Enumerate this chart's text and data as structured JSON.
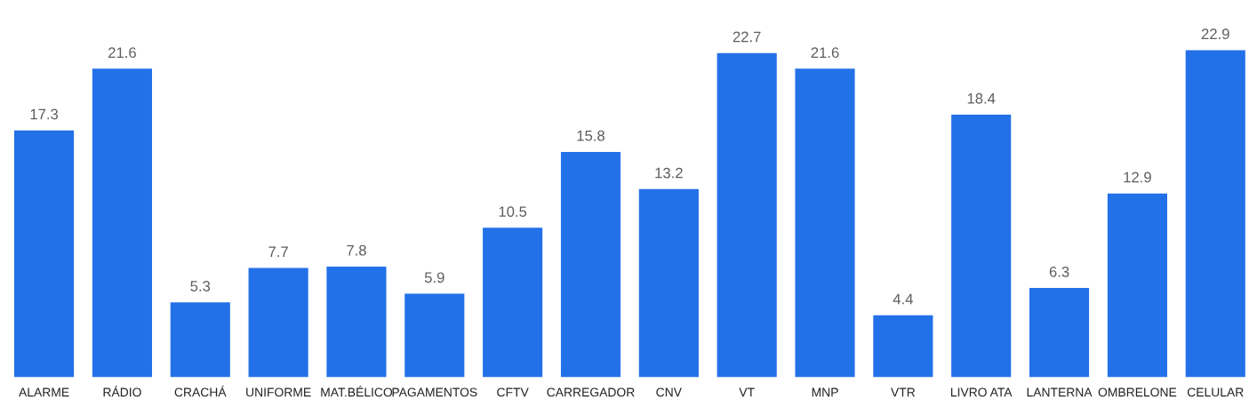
{
  "chart_data": {
    "type": "bar",
    "categories": [
      "ALARME",
      "RÁDIO",
      "CRACHÁ",
      "UNIFORME",
      "MAT.BÉLICO",
      "PAGAMENTOS",
      "CFTV",
      "CARREGADOR",
      "CNV",
      "VT",
      "MNP",
      "VTR",
      "LIVRO ATA",
      "LANTERNA",
      "OMBRELONE",
      "CELULAR"
    ],
    "values": [
      17.3,
      21.6,
      5.3,
      7.7,
      7.8,
      5.9,
      10.5,
      15.8,
      13.2,
      22.7,
      21.6,
      4.4,
      18.4,
      6.3,
      12.9,
      22.9
    ],
    "color": "#2371e8",
    "data_labels": true,
    "grid": false,
    "legend": false
  }
}
